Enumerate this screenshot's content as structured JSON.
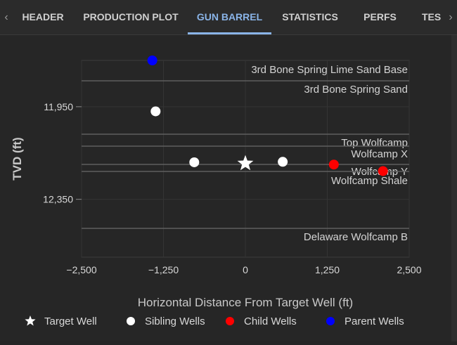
{
  "tabs": [
    {
      "label": "HEADER",
      "active": false
    },
    {
      "label": "PRODUCTION PLOT",
      "active": false
    },
    {
      "label": "GUN BARREL",
      "active": true
    },
    {
      "label": "STATISTICS",
      "active": false
    },
    {
      "label": "PERFS",
      "active": false
    },
    {
      "label": "TES",
      "active": false
    }
  ],
  "nav": {
    "left_arrow": "‹",
    "right_arrow": "›"
  },
  "colors": {
    "target": "#ffffff",
    "sibling": "#ffffff",
    "child": "#ff0000",
    "parent": "#0000ff",
    "active_tab": "#8ab4e8"
  },
  "chart_data": {
    "type": "scatter",
    "title": "",
    "xlabel": "Horizontal Distance From Target Well (ft)",
    "ylabel": "TVD (ft)",
    "xlim": [
      -2500,
      2500
    ],
    "ylim": [
      12600,
      11750
    ],
    "xticks": [
      -2500,
      -1250,
      0,
      1250,
      2500
    ],
    "xtick_labels": [
      "−2,500",
      "−1,250",
      "0",
      "1,250",
      "2,500"
    ],
    "yticks": [
      11950,
      12350
    ],
    "ytick_labels": [
      "11,950",
      "12,350"
    ],
    "formations": [
      {
        "name": "3rd Bone Spring Lime Sand Base",
        "tvd": 11855
      },
      {
        "name": "3rd Bone Spring Sand",
        "tvd": 11860
      },
      {
        "name": "Top Wolfcamp",
        "tvd": 12090
      },
      {
        "name": "Wolfcamp X",
        "tvd": 12155
      },
      {
        "name": "Wolfcamp Y",
        "tvd": 12240
      },
      {
        "name": "Wolfcamp Shale",
        "tvd": 12280
      },
      {
        "name": "Delaware Wolfcamp B",
        "tvd": 12485
      }
    ],
    "series": [
      {
        "name": "Target Well",
        "marker": "star",
        "color": "#ffffff",
        "points": [
          [
            0,
            12195
          ]
        ]
      },
      {
        "name": "Sibling Wells",
        "marker": "circle",
        "color": "#ffffff",
        "points": [
          [
            -1370,
            11970
          ],
          [
            -780,
            12190
          ],
          [
            570,
            12188
          ]
        ]
      },
      {
        "name": "Child Wells",
        "marker": "circle",
        "color": "#ff0000",
        "points": [
          [
            1350,
            12200
          ],
          [
            2100,
            12228
          ]
        ]
      },
      {
        "name": "Parent Wells",
        "marker": "circle",
        "color": "#0000ff",
        "points": [
          [
            -1420,
            11750
          ]
        ]
      }
    ],
    "legend": [
      "Target Well",
      "Sibling Wells",
      "Child Wells",
      "Parent Wells"
    ]
  }
}
